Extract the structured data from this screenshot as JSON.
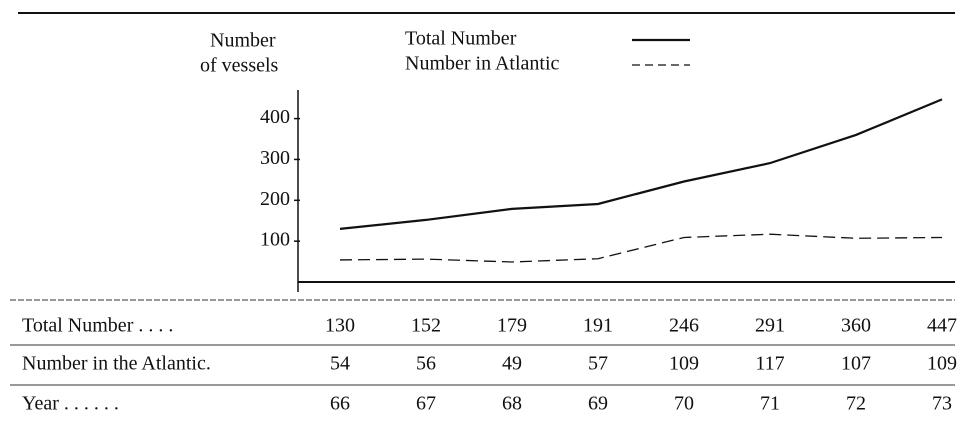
{
  "chart_data": {
    "type": "line",
    "ylabel_lines": [
      "Number",
      "of vessels"
    ],
    "categories": [
      "66",
      "67",
      "68",
      "69",
      "70",
      "71",
      "72",
      "73"
    ],
    "series": [
      {
        "name": "Total Number",
        "color": "#111111",
        "style": "solid",
        "values": [
          130,
          152,
          179,
          191,
          246,
          291,
          360,
          447
        ]
      },
      {
        "name": "Number in Atlantic",
        "color": "#111111",
        "style": "dashed",
        "values": [
          54,
          56,
          49,
          57,
          109,
          117,
          107,
          109
        ]
      }
    ],
    "ylim": [
      0,
      470
    ],
    "yticks": [
      100,
      200,
      300,
      400
    ],
    "row_labels": [
      "Total Number . . . .",
      "Number in the Atlantic.",
      "Year . . . . . ."
    ]
  }
}
